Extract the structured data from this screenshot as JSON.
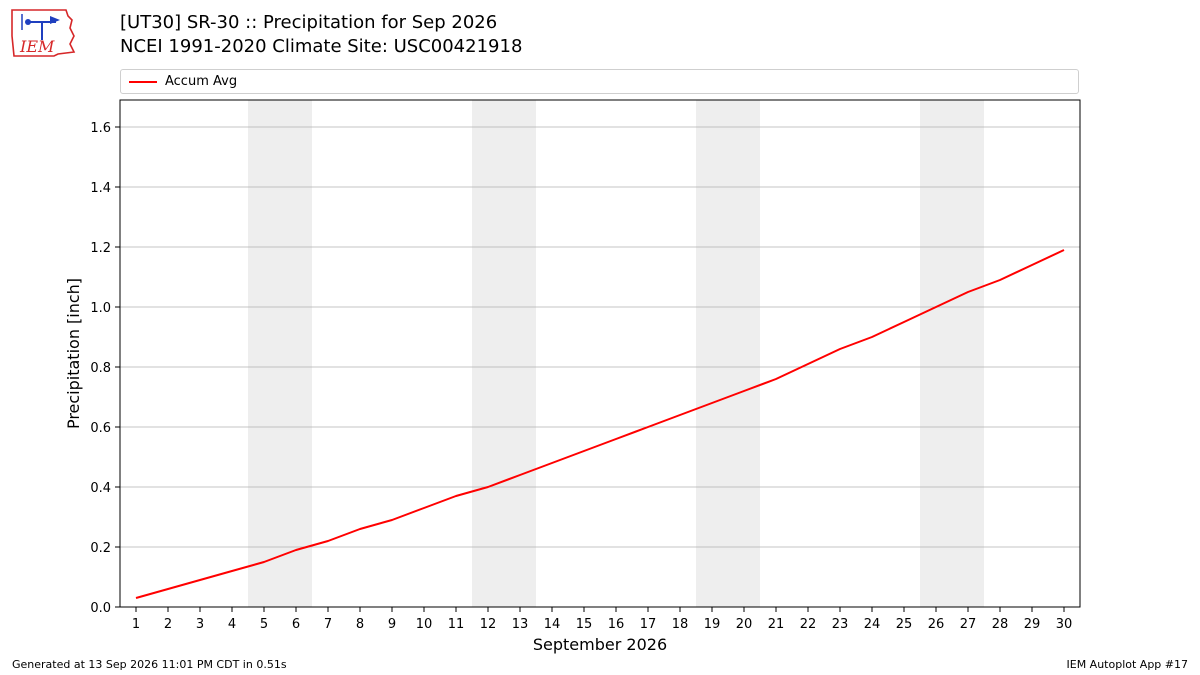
{
  "header": {
    "title_line1": "[UT30] SR-30  :: Precipitation for Sep 2026",
    "title_line2": "NCEI 1991-2020 Climate Site: USC00421918"
  },
  "logo": {
    "text": "IEM",
    "icon": "iem-logo-icon",
    "color": "#d62728"
  },
  "footer": {
    "left": "Generated at 13 Sep 2026 11:01 PM CDT in 0.51s",
    "right": "IEM Autoplot App #17"
  },
  "chart_data": {
    "type": "line",
    "title": "[UT30] SR-30  :: Precipitation for Sep 2026",
    "subtitle": "NCEI 1991-2020 Climate Site: USC00421918",
    "xlabel": "September 2026",
    "ylabel": "Precipitation [inch]",
    "x": [
      1,
      2,
      3,
      4,
      5,
      6,
      7,
      8,
      9,
      10,
      11,
      12,
      13,
      14,
      15,
      16,
      17,
      18,
      19,
      20,
      21,
      22,
      23,
      24,
      25,
      26,
      27,
      28,
      29,
      30
    ],
    "series": [
      {
        "name": "Accum Avg",
        "color": "#ff0000",
        "values": [
          0.03,
          0.06,
          0.09,
          0.12,
          0.15,
          0.19,
          0.22,
          0.26,
          0.29,
          0.33,
          0.37,
          0.4,
          0.44,
          0.48,
          0.52,
          0.56,
          0.6,
          0.64,
          0.68,
          0.72,
          0.76,
          0.81,
          0.86,
          0.9,
          0.95,
          1.0,
          1.05,
          1.09,
          1.14,
          1.19
        ]
      }
    ],
    "xlim": [
      0.5,
      30.5
    ],
    "ylim": [
      0,
      1.69
    ],
    "yticks": [
      0.0,
      0.2,
      0.4,
      0.6,
      0.8,
      1.0,
      1.2,
      1.4,
      1.6
    ],
    "xticks": [
      1,
      2,
      3,
      4,
      5,
      6,
      7,
      8,
      9,
      10,
      11,
      12,
      13,
      14,
      15,
      16,
      17,
      18,
      19,
      20,
      21,
      22,
      23,
      24,
      25,
      26,
      27,
      28,
      29,
      30
    ],
    "weekend_shading": [
      [
        4.5,
        6.5
      ],
      [
        11.5,
        13.5
      ],
      [
        18.5,
        20.5
      ],
      [
        25.5,
        27.5
      ]
    ],
    "shading_color": "#eeeeee",
    "grid": "y",
    "legend_position": "top"
  }
}
